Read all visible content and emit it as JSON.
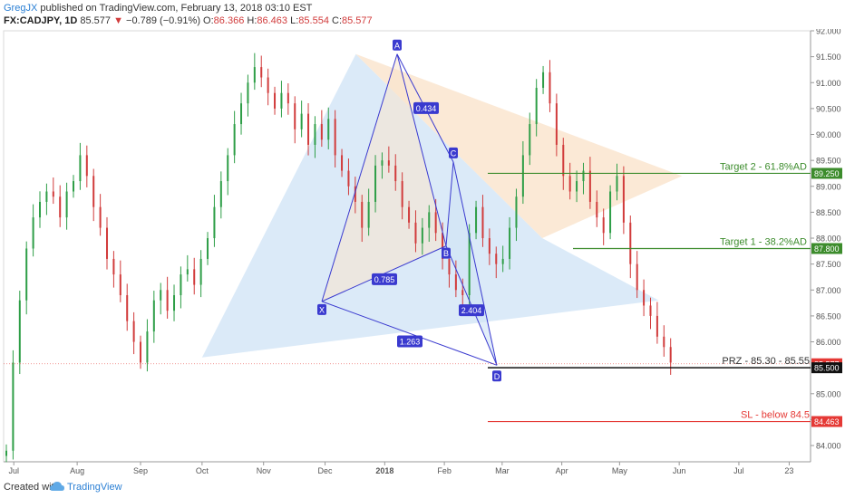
{
  "header": {
    "author": "GregJX",
    "published": "published on TradingView.com, February 13, 2018 03:10 EST",
    "symbol": "FX:CADJPY, 1D",
    "last": "85.577",
    "change_arrow": "▼",
    "change": "−0.789 (−0.91%)",
    "o_label": "O:",
    "o_val": "86.366",
    "h_label": "H:",
    "h_val": "86.463",
    "l_label": "L:",
    "l_val": "85.554",
    "c_label": "C:",
    "c_val": "85.577"
  },
  "footer": {
    "created_with": "Created with",
    "brand": "TradingView",
    "logo_icon": "tradingview-cloud-icon"
  },
  "colors": {
    "up": "#2e9e47",
    "down": "#d13b3b",
    "pattern": "#3a3acf",
    "pattern_fill_blue": "#cfe3f5",
    "pattern_fill_orange": "#fae3cc",
    "target_line": "#3c8c2c",
    "sl_line": "#e53935",
    "label_green": "#3c8c2c",
    "label_red": "#e53935",
    "last_price_bg": "#e53935"
  },
  "chart_data": {
    "type": "candlestick",
    "symbol": "FX:CADJPY",
    "interval": "1D",
    "ylim": [
      83.8,
      92.0
    ],
    "y_ticks": [
      "92.000",
      "91.500",
      "91.000",
      "90.500",
      "90.000",
      "89.500",
      "89.000",
      "88.500",
      "88.000",
      "87.500",
      "87.000",
      "86.500",
      "86.000",
      "85.500",
      "85.000",
      "84.500",
      "84.000"
    ],
    "x_ticks": [
      "Jul",
      "Aug",
      "Sep",
      "Oct",
      "Nov",
      "Dec",
      "2018",
      "Feb",
      "Mar",
      "Apr",
      "May",
      "Jun",
      "Jul",
      "23"
    ],
    "x_tick_index": [
      4,
      38,
      72,
      105,
      138,
      171,
      203,
      235,
      266,
      298,
      329,
      361,
      393,
      420
    ],
    "close_path": [
      83.9,
      85.6,
      86.8,
      87.8,
      88.4,
      88.7,
      88.9,
      88.8,
      88.4,
      88.9,
      89.1,
      89.6,
      89.2,
      88.6,
      88.2,
      87.6,
      87.3,
      86.9,
      86.4,
      86.0,
      85.6,
      86.2,
      86.8,
      87.0,
      86.6,
      86.9,
      87.3,
      87.4,
      87.1,
      87.6,
      88.0,
      88.6,
      89.1,
      89.6,
      90.2,
      90.6,
      91.0,
      91.3,
      91.1,
      90.8,
      90.5,
      90.8,
      90.6,
      90.1,
      90.4,
      89.8,
      90.2,
      89.9,
      90.3,
      89.6,
      89.3,
      89.0,
      88.7,
      88.2,
      88.7,
      89.4,
      89.5,
      89.4,
      89.1,
      88.6,
      88.3,
      87.9,
      88.2,
      88.5,
      88.1,
      87.6,
      87.3,
      87.0,
      86.9,
      88.1,
      88.6,
      88.0,
      87.7,
      87.5,
      87.6,
      88.2,
      88.8,
      89.6,
      90.2,
      90.9,
      91.2,
      90.6,
      89.8,
      89.2,
      88.9,
      89.1,
      89.3,
      88.7,
      88.4,
      88.1,
      88.9,
      89.2,
      88.3,
      87.5,
      87.0,
      86.7,
      86.5,
      86.1,
      85.9,
      85.6
    ],
    "candle_count": 100,
    "last_price": 85.577,
    "pattern": {
      "type": "bullish harmonic",
      "points": [
        {
          "label": "X",
          "value": 86.78
        },
        {
          "label": "A",
          "value": 91.55
        },
        {
          "label": "B",
          "value": 87.85
        },
        {
          "label": "C",
          "value": 89.47
        },
        {
          "label": "D",
          "value": 85.55
        }
      ],
      "ratios": [
        {
          "label": "0.434",
          "between": "A-C"
        },
        {
          "label": "0.785",
          "between": "X-B"
        },
        {
          "label": "2.404",
          "between": "B-D"
        },
        {
          "label": "1.263",
          "between": "X-D"
        }
      ]
    },
    "levels": [
      {
        "label": "Target 2  - 61.8%AD",
        "value": 89.25,
        "price_label": "89.250",
        "color": "#3c8c2c"
      },
      {
        "label": "Target 1 - 38.2%AD",
        "value": 87.8,
        "price_label": "87.800",
        "color": "#3c8c2c"
      },
      {
        "label": "PRZ - 85.30 - 85.55",
        "value": 85.5,
        "price_label": "85.500",
        "color": "#111111"
      },
      {
        "label": "SL - below 84.5",
        "value": 84.463,
        "price_label": "84.463",
        "color": "#e53935"
      }
    ],
    "last_price_label": "85.577"
  }
}
